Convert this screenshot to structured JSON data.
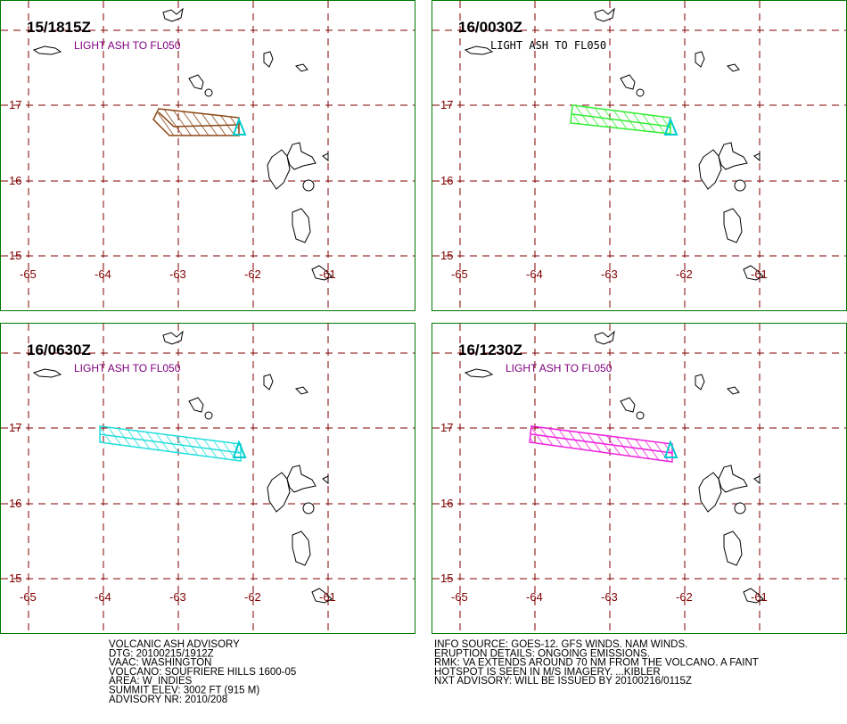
{
  "panels": [
    {
      "title": "15/1815Z",
      "label": "LIGHT ASH TO FL050",
      "label_color": "#800080",
      "ash_color": "#8b4513"
    },
    {
      "title": "16/0030Z",
      "label": "LIGHT ASH TO FL050",
      "label_color": "#000000",
      "ash_color": "#33ee33"
    },
    {
      "title": "16/0630Z",
      "label": "LIGHT ASH TO FL050",
      "label_color": "#800080",
      "ash_color": "#22dddd"
    },
    {
      "title": "16/1230Z",
      "label": "LIGHT ASH TO FL050",
      "label_color": "#800080",
      "ash_color": "#ee22dd"
    }
  ],
  "grid": {
    "lon_labels": [
      "-65",
      "-64",
      "-63",
      "-62",
      "-61"
    ],
    "lat_labels": [
      "17",
      "16",
      "15"
    ]
  },
  "advisory": {
    "left": [
      "VOLCANIC ASH ADVISORY",
      "DTG: 20100215/1912Z",
      "VAAC: WASHINGTON",
      "VOLCANO: SOUFRIERE HILLS 1600-05",
      "AREA: W_INDIES",
      "SUMMIT ELEV: 3002 FT (915 M)",
      "ADVISORY NR: 2010/208"
    ],
    "right": [
      "INFO SOURCE: GOES-12. GFS WINDS. NAM WINDS.",
      "ERUPTION DETAILS: ONGOING EMISSIONS.",
      "RMK: VA EXTENDS AROUND 70 NM FROM THE VOLCANO. A FAINT",
      "HOTSPOT IS SEEN IN M/S IMAGERY. ...KIBLER",
      "NXT ADVISORY: WILL BE ISSUED BY 20100216/0115Z"
    ]
  }
}
